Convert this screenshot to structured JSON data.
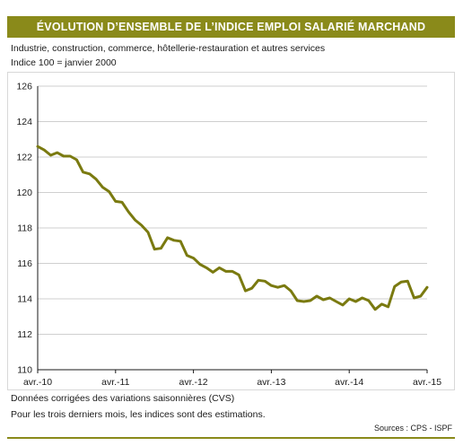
{
  "title": "ÉVOLUTION D’ENSEMBLE DE L’INDICE EMPLOI SALARIÉ MARCHAND",
  "subtitle_line1": "Industrie, construction, commerce, hôtellerie-restauration et autres services",
  "subtitle_line2": "Indice 100 = janvier 2000",
  "note_line1": "Données corrigées des variations saisonnières (CVS)",
  "note_line2": "Pour les trois derniers mois, les indices sont des estimations.",
  "source": "Sources : CPS - ISPF",
  "colors": {
    "accent": "#8a8a1a",
    "line": "#7a7a10",
    "grid": "#bfbfbf"
  },
  "chart_data": {
    "type": "line",
    "title": "",
    "xlabel": "",
    "ylabel": "",
    "ylim": [
      110,
      126
    ],
    "y_ticks": [
      "110",
      "112",
      "114",
      "116",
      "118",
      "120",
      "122",
      "124",
      "126"
    ],
    "x_ticks": [
      "avr.-10",
      "avr.-11",
      "avr.-12",
      "avr.-13",
      "avr.-14",
      "avr.-15"
    ],
    "grid": "horizontal",
    "series": [
      {
        "x_start": "2010-04",
        "x_end": "2015-04",
        "frequency": "monthly",
        "values": [
          122.6,
          122.4,
          122.1,
          122.25,
          122.05,
          122.05,
          121.85,
          121.15,
          121.05,
          120.75,
          120.3,
          120.05,
          119.5,
          119.45,
          118.9,
          118.45,
          118.15,
          117.75,
          116.8,
          116.85,
          117.45,
          117.3,
          117.25,
          116.45,
          116.3,
          115.95,
          115.75,
          115.5,
          115.75,
          115.55,
          115.55,
          115.35,
          114.45,
          114.6,
          115.05,
          115.0,
          114.75,
          114.65,
          114.75,
          114.45,
          113.9,
          113.85,
          113.9,
          114.15,
          113.95,
          114.05,
          113.85,
          113.65,
          114.0,
          113.85,
          114.05,
          113.9,
          113.4,
          113.7,
          113.55,
          114.7,
          114.95,
          115.0,
          114.05,
          114.15,
          114.65
        ]
      }
    ]
  }
}
